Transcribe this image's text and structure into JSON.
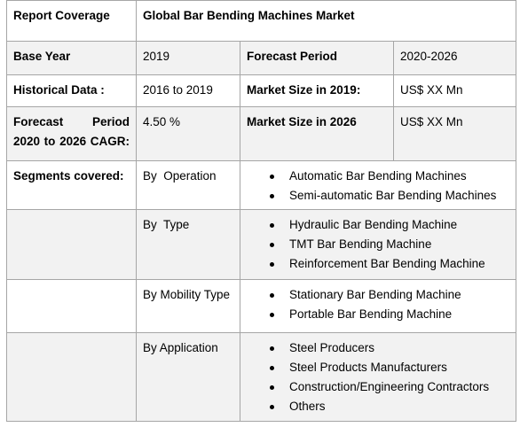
{
  "header": {
    "label": "Report Coverage",
    "title": "Global Bar Bending Machines Market"
  },
  "facts": [
    [
      "Base Year",
      "2019",
      "Forecast Period",
      "2020-2026"
    ],
    [
      "Historical Data :",
      "2016 to 2019",
      "Market Size in 2019:",
      "US$ XX Mn"
    ],
    [
      "Forecast Period 2020 to 2026 CAGR:",
      "4.50 %",
      "Market Size in 2026",
      "US$ XX Mn"
    ]
  ],
  "segments": {
    "label": "Segments covered:",
    "groups": [
      {
        "name": "By  Operation",
        "items": [
          "Automatic Bar Bending Machines",
          "Semi-automatic Bar Bending Machines"
        ]
      },
      {
        "name": "By  Type",
        "items": [
          "Hydraulic Bar Bending Machine",
          "TMT Bar Bending Machine",
          "Reinforcement Bar Bending Machine"
        ]
      },
      {
        "name": "By Mobility Type",
        "items": [
          "Stationary Bar Bending Machine",
          "Portable Bar Bending Machine"
        ]
      },
      {
        "name": "By Application",
        "items": [
          "Steel Producers",
          "Steel Products Manufacturers",
          "Construction/Engineering Contractors",
          "Others"
        ]
      }
    ]
  }
}
